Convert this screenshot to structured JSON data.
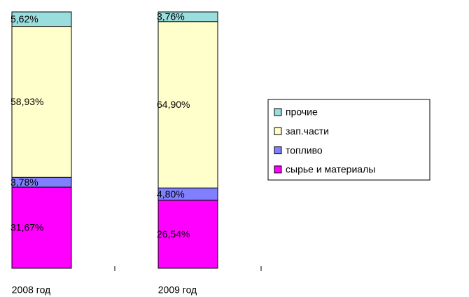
{
  "chart_data": {
    "type": "stacked_bar",
    "categories": [
      "2008 год",
      "2009 год"
    ],
    "series": [
      {
        "name": "сырье и материалы",
        "color": "#ff00ff",
        "values": [
          31.67,
          26.54
        ],
        "value_labels": [
          "31,67%",
          "26,54%"
        ]
      },
      {
        "name": "топливо",
        "color": "#8080ff",
        "values": [
          3.78,
          4.8
        ],
        "value_labels": [
          "3,78%",
          "4,80%"
        ]
      },
      {
        "name": "зап.части",
        "color": "#ffffcc",
        "values": [
          58.93,
          64.9
        ],
        "value_labels": [
          "58,93%",
          "64,90%"
        ]
      },
      {
        "name": "прочие",
        "color": "#99dddd",
        "values": [
          5.62,
          3.76
        ],
        "value_labels": [
          "5,62%",
          "3,76%"
        ]
      }
    ],
    "legend": "right"
  }
}
